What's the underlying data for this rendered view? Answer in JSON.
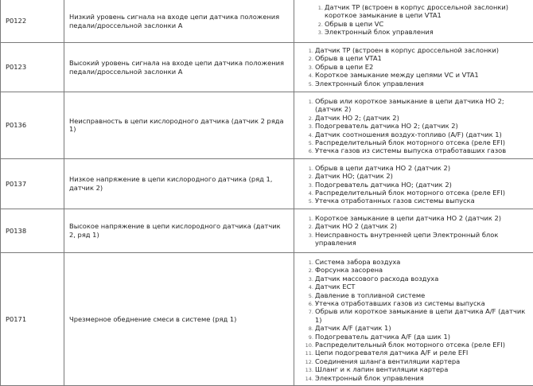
{
  "rows": [
    {
      "code": "P0122",
      "description": "Низкий уровень сигнала на входе цепи датчика положения педали/дроссельной заслонки A",
      "causes": [
        "Датчик ТР (встроен в корпус дроссельной заслонки) короткое замыкание в цепи VTA1",
        "Обрыв в цепи VC",
        "Электронный блок управления"
      ]
    },
    {
      "code": "P0123",
      "description": "Высокий уровень сигнала на входе цепи датчика положения педали/дроссельной заслонки A",
      "causes": [
        "Датчик ТР (встроен в корпус дроссельной заслонки)",
        "Обрыв в цепи VTA1",
        "Обрыв в цепи E2",
        "Короткое замыкание между цепями VC и VTA1",
        "Электронный блок управления"
      ]
    },
    {
      "code": "P0136",
      "description": "Неисправность в цепи кислородного датчика (датчик 2 ряда 1)",
      "causes": [
        "Обрыв или короткое замыкание в цепи датчика HO 2; (датчик 2)",
        "Датчик HO 2; (датчик 2)",
        "Подогреватель датчика HO 2; (датчик 2)",
        "Датчик соотношения воздух-топливо (A/F) (датчик 1)",
        "Распределительный блок моторного отсека (реле EFI)",
        "Утечка газов из системы выпуска отработавших газов"
      ]
    },
    {
      "code": "P0137",
      "description": "Низкое напряжение в цепи кислородного датчика (ряд 1, датчик 2)",
      "causes": [
        "Обрыв в цепи датчика HO 2 (датчик 2)",
        "Датчик HO; (датчик 2)",
        "Подогреватель датчика HO; (датчик 2)",
        "Распределительный блок моторного отсека (реле EFI)",
        "Утечка отработанных газов системы выпуска"
      ]
    },
    {
      "code": "P0138",
      "description": "Высокое напряжение в цепи кислородного датчика (датчик 2, ряд 1)",
      "causes": [
        "Короткое замыкание в цепи датчика HO 2 (датчик 2)",
        "Датчик HO 2 (датчик 2)",
        "Неисправность внутренней цепи Электронный блок управления"
      ]
    },
    {
      "code": "P0171",
      "description": "Чрезмерное обеднение смеси в системе (ряд 1)",
      "causes": [
        "Система забора воздуха",
        "Форсунка засорена",
        "Датчик массового расхода воздуха",
        "Датчик ECT",
        "Давление в топливной системе",
        "Утечка отработавших газов из системы выпуска",
        "Обрыв или короткое замыкание в цепи датчика A/F (датчик 1)",
        "Датчик A/F (датчик 1)",
        "Подогреватель датчика A/F (да шик 1)",
        "Распределительный блок моторного отсека (реле EFI)",
        "Цепи подогревателя датчика A/F и реле EFI",
        "Соединения шланга вентиляции картера",
        "Шланг и к лапин вентиляции картера",
        "Электронный блок управления"
      ]
    }
  ]
}
